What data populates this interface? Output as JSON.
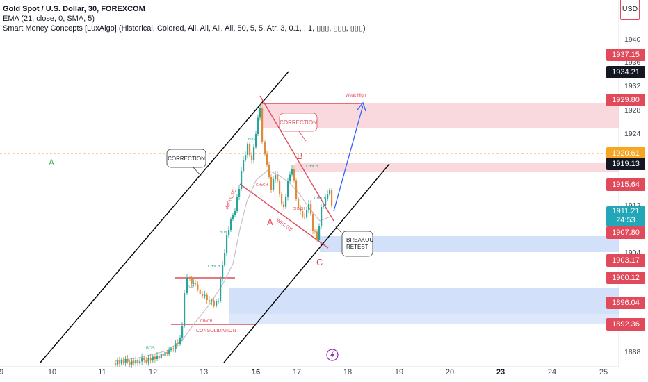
{
  "header": {
    "title": "Gold Spot / U.S. Dollar, 30, FOREXCOM",
    "indicator1": "EMA (21, close, 0, SMA, 5)",
    "indicator2": "Smart Money Concepts [LuxAlgo] (Historical, Colored, All, All, All, All, 50, 5, 5, Atr, 3, 0.1, , 1, ▯▯▯, ▯▯▯, ▯▯▯)"
  },
  "currency": "USD",
  "chart_data": {
    "type": "candlestick",
    "symbol": "Gold Spot / U.S. Dollar",
    "interval": "30",
    "ylim": [
      1886,
      1944
    ],
    "y_ticks": [
      1888.0,
      1940.0,
      1936.0,
      1932.0,
      1928.0,
      1924.0,
      1912.0,
      1904.0
    ],
    "x_ticks": [
      "9",
      "10",
      "11",
      "12",
      "13",
      "16",
      "17",
      "18",
      "19",
      "20",
      "23",
      "24",
      "25"
    ],
    "x_tick_bold": [
      "16",
      "23"
    ],
    "price_labels": [
      {
        "value": "1937.15",
        "color": "#e04a5b"
      },
      {
        "value": "1934.21",
        "color": "#131722"
      },
      {
        "value": "1929.80",
        "color": "#e04a5b"
      },
      {
        "value": "1920.61",
        "color": "#f5a623"
      },
      {
        "value": "1919.13",
        "color": "#131722"
      },
      {
        "value": "1915.64",
        "color": "#e04a5b"
      },
      {
        "value": "1911.21",
        "color": "#22a7b8",
        "sub": "24:53"
      },
      {
        "value": "1907.80",
        "color": "#e04a5b"
      },
      {
        "value": "1903.17",
        "color": "#e04a5b"
      },
      {
        "value": "1900.12",
        "color": "#e04a5b"
      },
      {
        "value": "1896.04",
        "color": "#e04a5b"
      },
      {
        "value": "1892.36",
        "color": "#e04a5b"
      }
    ],
    "zones": [
      {
        "kind": "supply",
        "from": 1929.8,
        "to": 1925.4,
        "color": "#f7c9cf"
      },
      {
        "kind": "supply",
        "from": 1920.4,
        "to": 1918.8,
        "color": "#f7c9cf"
      },
      {
        "kind": "demand",
        "from": 1907.8,
        "to": 1905.0,
        "color": "#c7daf7"
      },
      {
        "kind": "demand",
        "from": 1898.0,
        "to": 1892.6,
        "color": "#c7daf7"
      }
    ],
    "annotations": {
      "correction_left": "CORRECTION",
      "correction_top": "CORRECTION",
      "breakout": [
        "BREAKOUT",
        "RETEST"
      ],
      "consolidation": "CONSOLIDATION",
      "impulse": "IMPULSE",
      "wedge": "WEDGE",
      "weak_high": "Weak High",
      "wave_a_left": "A",
      "wave_a": "A",
      "wave_b": "B",
      "wave_c": "C",
      "bos_tags": [
        "BOS",
        "BOS",
        "BOS",
        "BOS"
      ],
      "choch_tags": [
        "CHoCH",
        "CHoCH",
        "CHoCH",
        "CHoCH",
        "CHoCH",
        "CHoCH"
      ]
    },
    "colors": {
      "up": "#26a69a",
      "down": "#e08a3c",
      "bearish_line": "#e04a5b",
      "target_arrow": "#2962ff"
    }
  }
}
